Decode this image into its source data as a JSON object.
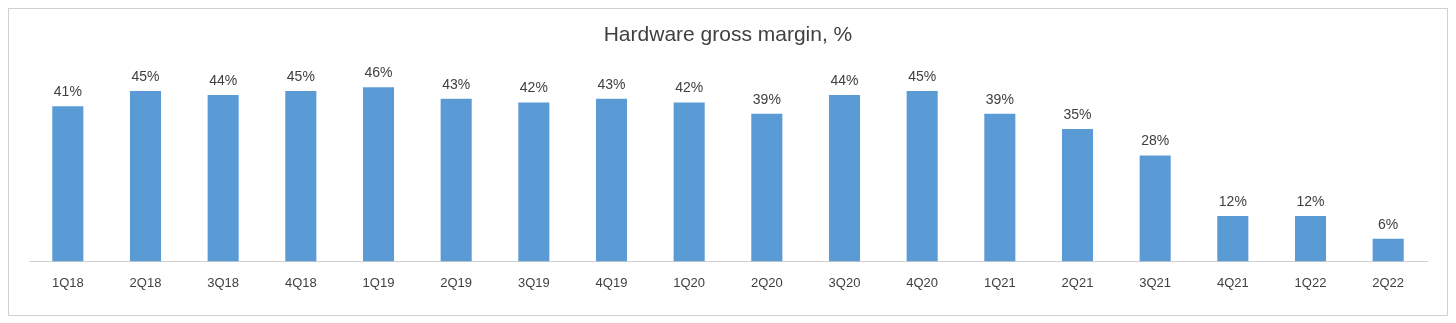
{
  "chart_data": {
    "type": "bar",
    "title": "Hardware gross margin, %",
    "categories": [
      "1Q18",
      "2Q18",
      "3Q18",
      "4Q18",
      "1Q19",
      "2Q19",
      "3Q19",
      "4Q19",
      "1Q20",
      "2Q20",
      "3Q20",
      "4Q20",
      "1Q21",
      "2Q21",
      "3Q21",
      "4Q21",
      "1Q22",
      "2Q22"
    ],
    "values": [
      41,
      45,
      44,
      45,
      46,
      43,
      42,
      43,
      42,
      39,
      44,
      45,
      39,
      35,
      28,
      12,
      12,
      6
    ],
    "value_labels": [
      "41%",
      "45%",
      "44%",
      "45%",
      "46%",
      "43%",
      "42%",
      "43%",
      "42%",
      "39%",
      "44%",
      "45%",
      "39%",
      "35%",
      "28%",
      "12%",
      "12%",
      "6%"
    ],
    "color": "#5b9bd5",
    "grid": false,
    "legend": false
  }
}
